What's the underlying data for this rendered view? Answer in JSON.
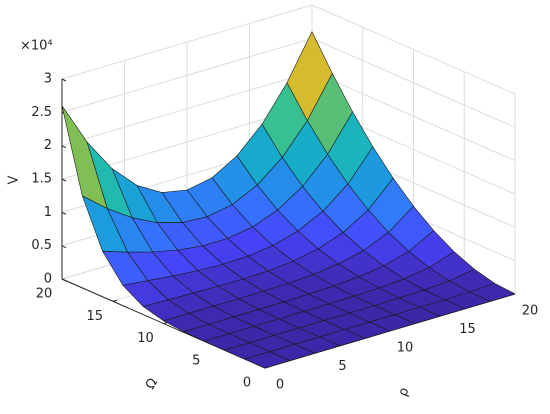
{
  "chart_data": {
    "type": "surface",
    "xlabel": "ρ",
    "ylabel": "Ω",
    "zlabel": "V",
    "exponent_label": "×10⁴",
    "x": [
      0,
      2,
      4,
      6,
      8,
      10,
      12,
      14,
      16,
      18,
      20
    ],
    "y": [
      0,
      2,
      4,
      6,
      8,
      10,
      12,
      14,
      16,
      18,
      20
    ],
    "z": [
      [
        0,
        0,
        0,
        0,
        0,
        0,
        0,
        0,
        0,
        0,
        0
      ],
      [
        0,
        0,
        0,
        0,
        0,
        1,
        2,
        7,
        23,
        77,
        260
      ],
      [
        2,
        2,
        3,
        5,
        7,
        12,
        26,
        62,
        158,
        408,
        1040
      ],
      [
        19,
        23,
        27,
        33,
        43,
        63,
        112,
        227,
        494,
        1081,
        2340
      ],
      [
        106,
        115,
        122,
        132,
        151,
        200,
        315,
        571,
        1102,
        2157,
        4160
      ],
      [
        406,
        401,
        390,
        385,
        404,
        488,
        704,
        1165,
        2061,
        3686,
        6500
      ],
      [
        1213,
        1113,
        1007,
        922,
        901,
        1011,
        1357,
        2088,
        3434,
        5709,
        9360
      ],
      [
        3059,
        2637,
        2245,
        1933,
        1775,
        1873,
        2363,
        3422,
        5285,
        8264,
        12740
      ],
      [
        6816,
        5576,
        4499,
        3670,
        3195,
        3195,
        3822,
        5245,
        7682,
        11390,
        16640
      ],
      [
        13815,
        10778,
        8294,
        6458,
        5365,
        5118,
        5835,
        7647,
        10684,
        15103,
        21060
      ],
      [
        26000,
        19450,
        14350,
        10710,
        8530,
        7800,
        8530,
        10710,
        14350,
        19450,
        26000
      ]
    ],
    "xlim": [
      0,
      20
    ],
    "ylim": [
      0,
      20
    ],
    "zlim": [
      0,
      30000
    ],
    "xticks": [
      0,
      5,
      10,
      15,
      20
    ],
    "yticks": [
      0,
      5,
      10,
      15,
      20
    ],
    "zticks": [
      {
        "value": 0,
        "label": "0"
      },
      {
        "value": 5000,
        "label": "0.5"
      },
      {
        "value": 10000,
        "label": "1"
      },
      {
        "value": 15000,
        "label": "1.5"
      },
      {
        "value": 20000,
        "label": "2"
      },
      {
        "value": 25000,
        "label": "2.5"
      },
      {
        "value": 30000,
        "label": "3"
      }
    ],
    "grid": true,
    "edge_color": "#1a1a1a",
    "colormap": [
      "#3e26a8",
      "#4743f8",
      "#3573fd",
      "#1e97e2",
      "#16b0c6",
      "#2bbf9d",
      "#7cbf58",
      "#d5bb2d",
      "#fac237",
      "#f9fb15"
    ]
  }
}
